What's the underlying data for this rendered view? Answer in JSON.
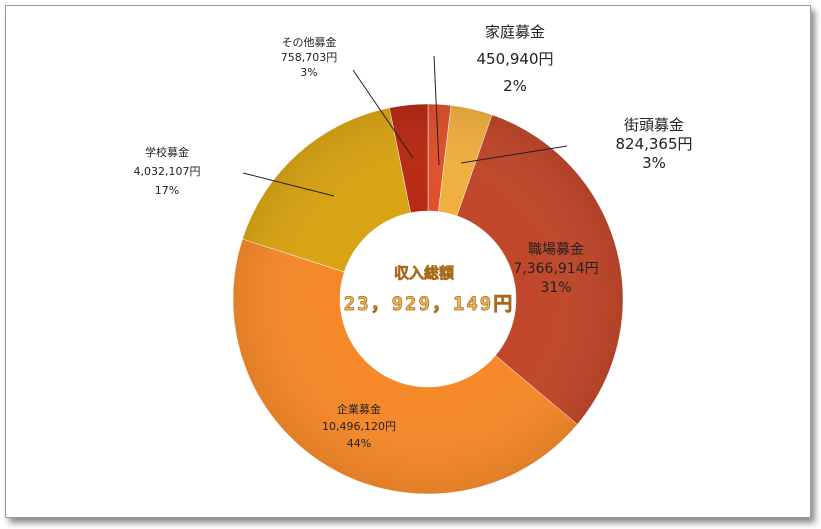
{
  "chart_data": {
    "type": "pie",
    "center_title": "収入総額",
    "center_total": "23，929，149円",
    "slices": [
      {
        "name": "家庭募金",
        "amount_label": "450,940円",
        "percent_label": "2%",
        "value": 450940,
        "color": "#e0502c"
      },
      {
        "name": "街頭募金",
        "amount_label": "824,365円",
        "percent_label": "3%",
        "value": 824365,
        "color": "#f0b040"
      },
      {
        "name": "職場募金",
        "amount_label": "7,366,914円",
        "percent_label": "31%",
        "value": 7366914,
        "color": "#c0472a"
      },
      {
        "name": "企業募金",
        "amount_label": "10,496,120円",
        "percent_label": "44%",
        "value": 10496120,
        "color": "#f5892a"
      },
      {
        "name": "学校募金",
        "amount_label": "4,032,107円",
        "percent_label": "17%",
        "value": 4032107,
        "color": "#d9a414"
      },
      {
        "name": "その他募金",
        "amount_label": "758,703円",
        "percent_label": "3%",
        "value": 758703,
        "color": "#b82a14"
      }
    ]
  }
}
